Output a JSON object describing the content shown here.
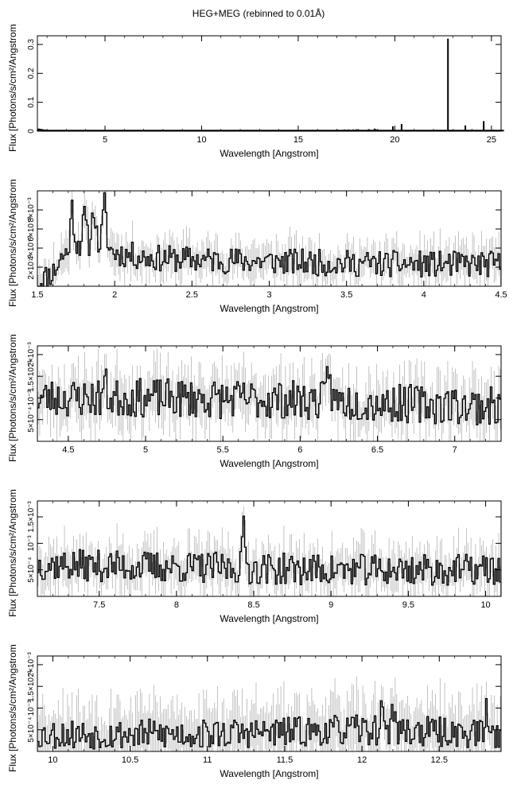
{
  "title": "HEG+MEG (rebinned to 0.01Å)",
  "colors": {
    "axis": "#000000",
    "spectrum": "#000000",
    "errorbar": "#9a9a9a"
  },
  "chart_data": [
    {
      "type": "line",
      "xlabel": "Wavelength [Angstrom]",
      "ylabel": "Flux [Photons/s/cm²/Angstrom]",
      "xlim": [
        1.5,
        25.5
      ],
      "ylim": [
        0,
        0.33
      ],
      "xticks": [
        5,
        10,
        15,
        20,
        25
      ],
      "xtick_labels": [
        "5",
        "10",
        "15",
        "20",
        "25"
      ],
      "yticks": [
        0,
        0.1,
        0.2,
        0.3
      ],
      "ytick_labels": [
        "0",
        "0.1",
        "0.2",
        "0.3"
      ],
      "x_start": 1.5,
      "x_step": 0.05,
      "values": [
        0.004,
        0.006,
        0.005,
        0.005,
        0.004,
        0.003,
        0.003,
        0.003,
        0.002,
        0.002,
        0.002,
        0.002,
        0.002,
        0.002,
        0.002,
        0.002,
        0.002,
        0.002,
        0.002,
        0.002,
        0.002,
        0.002,
        0.002,
        0.002,
        0.002,
        0.002,
        0.002,
        0.002,
        0.002,
        0.002,
        0.002,
        0.002,
        0.002,
        0.002,
        0.002,
        0.002,
        0.002,
        0.002,
        0.002,
        0.002,
        0.002,
        0.002,
        0.002,
        0.002,
        0.002,
        0.002,
        0.002,
        0.002,
        0.002,
        0.002,
        0.002,
        0.002,
        0.002,
        0.002,
        0.002,
        0.002,
        0.002,
        0.002,
        0.002,
        0.002,
        0.002,
        0.002,
        0.002,
        0.002,
        0.002,
        0.002,
        0.002,
        0.002,
        0.002,
        0.002,
        0.002,
        0.002,
        0.002,
        0.002,
        0.002,
        0.002,
        0.002,
        0.002,
        0.002,
        0.002,
        0.002,
        0.002,
        0.002,
        0.002,
        0.002,
        0.002,
        0.002,
        0.002,
        0.002,
        0.002,
        0.002,
        0.002,
        0.002,
        0.002,
        0.002,
        0.002,
        0.002,
        0.002,
        0.002,
        0.002,
        0.002,
        0.002,
        0.002,
        0.002,
        0.002,
        0.002,
        0.002,
        0.002,
        0.002,
        0.002,
        0.002,
        0.002,
        0.002,
        0.002,
        0.002,
        0.002,
        0.002,
        0.002,
        0.002,
        0.002,
        0.002,
        0.002,
        0.002,
        0.002,
        0.002,
        0.002,
        0.002,
        0.002,
        0.002,
        0.002,
        0.002,
        0.002,
        0.002,
        0.002,
        0.002,
        0.002,
        0.002,
        0.002,
        0.002,
        0.002,
        0.002,
        0.002,
        0.002,
        0.002,
        0.002,
        0.002,
        0.002,
        0.002,
        0.002,
        0.002,
        0.002,
        0.002,
        0.002,
        0.002,
        0.002,
        0.002,
        0.002,
        0.002,
        0.002,
        0.002,
        0.002,
        0.002,
        0.002,
        0.002,
        0.002,
        0.002,
        0.002,
        0.002,
        0.002,
        0.002,
        0.002,
        0.002,
        0.002,
        0.002,
        0.002,
        0.002,
        0.002,
        0.002,
        0.002,
        0.002,
        0.002,
        0.002,
        0.002,
        0.002,
        0.002,
        0.002,
        0.002,
        0.002,
        0.002,
        0.002,
        0.002,
        0.002,
        0.002,
        0.002,
        0.002,
        0.002,
        0.002,
        0.002,
        0.002,
        0.002,
        0.002,
        0.002,
        0.002,
        0.002,
        0.002,
        0.002,
        0.002,
        0.002,
        0.002,
        0.002,
        0.002,
        0.002,
        0.002,
        0.002,
        0.002,
        0.002,
        0.002,
        0.002,
        0.002,
        0.002,
        0.002,
        0.002,
        0.002,
        0.002,
        0.002,
        0.002,
        0.002,
        0.002,
        0.002,
        0.002,
        0.002,
        0.002,
        0.002,
        0.002,
        0.002,
        0.002,
        0.002,
        0.002,
        0.002,
        0.002,
        0.002,
        0.002,
        0.002,
        0.002,
        0.002,
        0.002,
        0.002,
        0.002,
        0.002,
        0.002,
        0.002,
        0.002,
        0.002,
        0.002,
        0.002,
        0.002,
        0.002,
        0.002,
        0.002,
        0.002,
        0.002,
        0.002,
        0.002,
        0.002,
        0.002,
        0.002,
        0.002,
        0.002,
        0.002,
        0.002,
        0.002,
        0.002,
        0.002,
        0.002,
        0.002,
        0.002,
        0.002,
        0.002,
        0.002,
        0.002,
        0.002,
        0.002,
        0.002,
        0.002,
        0.002,
        0.002,
        0.002,
        0.002,
        0.002,
        0.002,
        0.002,
        0.002,
        0.002,
        0.002,
        0.002,
        0.002,
        0.002,
        0.002,
        0.002,
        0.002,
        0.002,
        0.002,
        0.002,
        0.002,
        0.002,
        0.002,
        0.002,
        0.002,
        0.002,
        0.002,
        0.002,
        0.002,
        0.002,
        0.002,
        0.002,
        0.002,
        0.002,
        0.002,
        0.002,
        0.002,
        0.002,
        0.002,
        0.002,
        0.002,
        0.002,
        0.002,
        0.002,
        0.002,
        0.002,
        0.002,
        0.002,
        0.002,
        0.002,
        0.002,
        0.002,
        0.002,
        0.002,
        0.002,
        0.002,
        0.002,
        0.002,
        0.002,
        0.002,
        0.002,
        0.002,
        0.002,
        0.002,
        0.002,
        0.002,
        0.002,
        0.002,
        0.002,
        0.002,
        0.002,
        0.002,
        0.002,
        0.002,
        0.002,
        0.002,
        0.002,
        0.002,
        0.002,
        0.002,
        0.002,
        0.002,
        0.002,
        0.002,
        0.002,
        0.002,
        0.002,
        0.002,
        0.002,
        0.002,
        0.002,
        0.002,
        0.002,
        0.002,
        0.002,
        0.002,
        0.002,
        0.002,
        0.002,
        0.002,
        0.002,
        0.002,
        0.002,
        0.002,
        0.002,
        0.002,
        0.002,
        0.002,
        0.002,
        0.002,
        0.002,
        0.002,
        0.002,
        0.002,
        0.002,
        0.002,
        0.002,
        0.002,
        0.002,
        0.002,
        0.002,
        0.002,
        0.002,
        0.002,
        0.002,
        0.002,
        0.002,
        0.002,
        0.002,
        0.002,
        0.002,
        0.002,
        0.002,
        0.002,
        0.002,
        0.002,
        0.002,
        0.002,
        0.002,
        0.002,
        0.002,
        0.002,
        0.002,
        0.002,
        0.002,
        0.002,
        0.002,
        0.002,
        0.002,
        0.002,
        0.002,
        0.002,
        0.002,
        0.002,
        0.002,
        0.002,
        0.002,
        0.002,
        0.002,
        0.002,
        0.002,
        0.002,
        0.002,
        0.002,
        0.002,
        0.002,
        0.002,
        0.002,
        0.002,
        0.002,
        0.002,
        0.002,
        0.002,
        0.002,
        0.002,
        0.002,
        0.002,
        0.002,
        0.002,
        0.002,
        0.002,
        0.002,
        0.002,
        0.002,
        0.002,
        0.002,
        0.002,
        0.002,
        0.002,
        0.002,
        0.002,
        0.002,
        0.002,
        0.002,
        0.002,
        0.002,
        0.002,
        0.002,
        0.002,
        0.002
      ],
      "lines": [
        {
          "x": 16.8,
          "y": 0.004
        },
        {
          "x": 17.05,
          "y": 0.005
        },
        {
          "x": 17.4,
          "y": 0.006
        },
        {
          "x": 17.6,
          "y": 0.006
        },
        {
          "x": 17.85,
          "y": 0.006
        },
        {
          "x": 18.1,
          "y": 0.007
        },
        {
          "x": 18.65,
          "y": 0.007
        },
        {
          "x": 18.95,
          "y": 0.009
        },
        {
          "x": 19.1,
          "y": 0.007
        },
        {
          "x": 19.9,
          "y": 0.017
        },
        {
          "x": 20.35,
          "y": 0.025
        },
        {
          "x": 22.75,
          "y": 0.32
        },
        {
          "x": 23.65,
          "y": 0.02
        },
        {
          "x": 24.6,
          "y": 0.035
        },
        {
          "x": 25.1,
          "y": 0.005
        }
      ]
    },
    {
      "type": "line",
      "xlabel": "Wavelength [Angstrom]",
      "ylabel": "Flux [Photons/s/cm²/Angstrom]",
      "xlim": [
        1.5,
        4.5
      ],
      "ylim": [
        0,
        0.01
      ],
      "xticks": [
        1.5,
        2,
        2.5,
        3,
        3.5,
        4,
        4.5
      ],
      "xtick_labels": [
        "1.5",
        "2",
        "2.5",
        "3",
        "3.5",
        "4",
        "4.5"
      ],
      "yticks": [
        0.002,
        0.004,
        0.006,
        0.008
      ],
      "ytick_labels": [
        "2×10⁻³",
        "4×10⁻³",
        "6×10⁻³",
        "8×10⁻³"
      ],
      "seed": 11,
      "x_start": 1.5,
      "x_step": 0.01,
      "values": [],
      "baseline": [
        [
          1.5,
          0.0005
        ],
        [
          1.6,
          0.0015
        ],
        [
          1.65,
          0.003
        ],
        [
          1.75,
          0.0045
        ],
        [
          1.9,
          0.0045
        ],
        [
          2.0,
          0.0035
        ],
        [
          2.2,
          0.003
        ],
        [
          2.5,
          0.0028
        ],
        [
          3.0,
          0.0026
        ],
        [
          3.5,
          0.0024
        ],
        [
          4.0,
          0.0023
        ],
        [
          4.5,
          0.0023
        ]
      ],
      "features": [
        [
          1.72,
          0.0042
        ],
        [
          1.8,
          0.003
        ],
        [
          1.86,
          0.004
        ],
        [
          1.93,
          0.005
        ]
      ],
      "noise": 0.0014,
      "err": 0.0016
    },
    {
      "type": "line",
      "xlabel": "Wavelength [Angstrom]",
      "ylabel": "Flux [Photons/s/cm²/Angstrom]",
      "xlim": [
        4.3,
        7.3
      ],
      "ylim": [
        0,
        0.0022
      ],
      "xticks": [
        4.5,
        5,
        5.5,
        6,
        6.5,
        7
      ],
      "xtick_labels": [
        "4.5",
        "5",
        "5.5",
        "6",
        "6.5",
        "7"
      ],
      "yticks": [
        0.0005,
        0.001,
        0.0015,
        0.002
      ],
      "ytick_labels": [
        "5×10⁻⁴",
        "10⁻³",
        "1.5×10⁻³",
        "2×10⁻³"
      ],
      "seed": 23,
      "x_start": 4.3,
      "x_step": 0.01,
      "values": [],
      "baseline": [
        [
          4.3,
          0.001
        ],
        [
          5.0,
          0.001
        ],
        [
          6.0,
          0.00095
        ],
        [
          7.3,
          0.0008
        ]
      ],
      "features": [
        [
          6.18,
          0.0008
        ],
        [
          4.73,
          0.0004
        ]
      ],
      "noise": 0.00045,
      "err": 0.0005
    },
    {
      "type": "line",
      "xlabel": "Wavelength [Angstrom]",
      "ylabel": "Flux [Photons/s/cm²/Angstrom]",
      "xlim": [
        7.1,
        10.1
      ],
      "ylim": [
        0,
        0.0018
      ],
      "xticks": [
        7.5,
        8,
        8.5,
        9,
        9.5,
        10
      ],
      "xtick_labels": [
        "7.5",
        "8",
        "8.5",
        "9",
        "9.5",
        "10"
      ],
      "yticks": [
        0.0005,
        0.001,
        0.0015
      ],
      "ytick_labels": [
        "5×10⁻⁴",
        "10⁻³",
        "1.5×10⁻³"
      ],
      "seed": 37,
      "x_start": 7.1,
      "x_step": 0.01,
      "values": [],
      "baseline": [
        [
          7.1,
          0.0006
        ],
        [
          8.0,
          0.00055
        ],
        [
          9.0,
          0.0005
        ],
        [
          10.1,
          0.0005
        ]
      ],
      "features": [
        [
          8.43,
          0.0007
        ]
      ],
      "noise": 0.0003,
      "err": 0.00035
    },
    {
      "type": "line",
      "xlabel": "Wavelength [Angstrom]",
      "ylabel": "Flux [Photons/s/cm²/Angstrom]",
      "xlim": [
        9.9,
        12.9
      ],
      "ylim": [
        0,
        0.0022
      ],
      "xticks": [
        10,
        10.5,
        11,
        11.5,
        12,
        12.5
      ],
      "xtick_labels": [
        "10",
        "10.5",
        "11",
        "11.5",
        "12",
        "12.5"
      ],
      "yticks": [
        0.0005,
        0.001,
        0.0015,
        0.002
      ],
      "ytick_labels": [
        "5×10⁻⁴",
        "10⁻³",
        "1.5×10⁻³",
        "2×10⁻³"
      ],
      "seed": 53,
      "x_start": 9.9,
      "x_step": 0.01,
      "values": [],
      "baseline": [
        [
          9.9,
          0.0004
        ],
        [
          11.0,
          0.0004
        ],
        [
          12.0,
          0.0005
        ],
        [
          12.9,
          0.0004
        ]
      ],
      "features": [
        [
          12.13,
          0.0006
        ],
        [
          12.8,
          0.0005
        ],
        [
          12.2,
          0.0005
        ]
      ],
      "noise": 0.00035,
      "err": 0.0006
    }
  ]
}
